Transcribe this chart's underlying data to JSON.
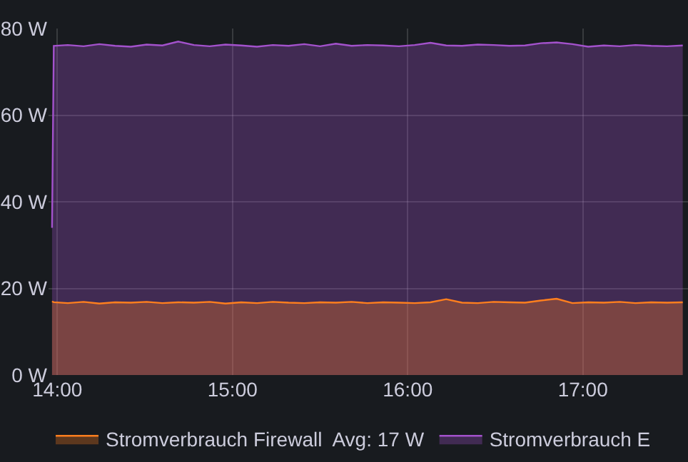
{
  "chart_data": {
    "type": "area",
    "x": [
      13.97,
      13.98,
      14.06,
      14.15,
      14.24,
      14.33,
      14.42,
      14.51,
      14.6,
      14.69,
      14.78,
      14.87,
      14.96,
      15.05,
      15.14,
      15.23,
      15.32,
      15.41,
      15.5,
      15.59,
      15.68,
      15.77,
      15.86,
      15.95,
      16.04,
      16.13,
      16.22,
      16.31,
      16.4,
      16.49,
      16.58,
      16.67,
      16.76,
      16.85,
      16.94,
      17.03,
      17.12,
      17.21,
      17.3,
      17.39,
      17.48,
      17.57
    ],
    "series": [
      {
        "name": "Stromverbrauch Firewall  Avg: 17 W",
        "color": "#ff7f1e",
        "values": [
          17,
          16.8,
          16.6,
          16.9,
          16.5,
          16.8,
          16.7,
          16.9,
          16.6,
          16.8,
          16.7,
          16.9,
          16.5,
          16.8,
          16.6,
          16.9,
          16.7,
          16.6,
          16.8,
          16.7,
          16.9,
          16.6,
          16.8,
          16.7,
          16.6,
          16.8,
          17.5,
          16.7,
          16.6,
          16.9,
          16.8,
          16.7,
          17.2,
          17.6,
          16.6,
          16.8,
          16.7,
          16.9,
          16.6,
          16.8,
          16.7,
          16.8
        ]
      },
      {
        "name": "Stromverbrauch E",
        "color": "#a352cc",
        "values": [
          34,
          76,
          76.2,
          75.9,
          76.4,
          76,
          75.8,
          76.3,
          76.1,
          77,
          76.2,
          75.9,
          76.3,
          76.1,
          75.8,
          76.2,
          76,
          76.4,
          75.9,
          76.5,
          76,
          76.2,
          76.1,
          75.9,
          76.2,
          76.7,
          76.1,
          76,
          76.3,
          76.2,
          76,
          76.1,
          76.6,
          76.8,
          76.4,
          75.8,
          76.1,
          75.9,
          76.2,
          76,
          75.9,
          76.1
        ]
      }
    ],
    "xlim": [
      13.95,
      17.6
    ],
    "xticks": [
      {
        "value": 14,
        "label": "14:00"
      },
      {
        "value": 15,
        "label": "15:00"
      },
      {
        "value": 16,
        "label": "16:00"
      },
      {
        "value": 17,
        "label": "17:00"
      }
    ],
    "ylim": [
      0,
      80
    ],
    "yticks": [
      {
        "value": 0,
        "label": "0 W"
      },
      {
        "value": 20,
        "label": "20 W"
      },
      {
        "value": 40,
        "label": "40 W"
      },
      {
        "value": 60,
        "label": "60 W"
      },
      {
        "value": 80,
        "label": "80 W"
      }
    ],
    "grid": true,
    "legend": "bottom"
  }
}
